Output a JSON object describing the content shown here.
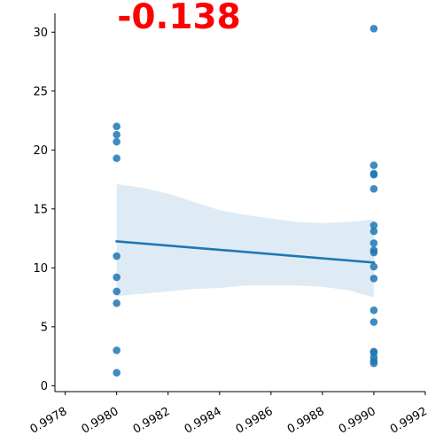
{
  "title": "-0.138",
  "colors": {
    "title": "#ff0000",
    "points": "#1f77b4",
    "line": "#1f77b4",
    "band": "#1f77b4"
  },
  "chart_data": {
    "type": "scatter",
    "title": "-0.138",
    "xlabel": "",
    "ylabel": "",
    "xlim": [
      0.99776,
      0.9992
    ],
    "ylim": [
      -0.5,
      31.6
    ],
    "xticks": [
      0.9978,
      0.998,
      0.9982,
      0.9984,
      0.9986,
      0.9988,
      0.999,
      0.9992
    ],
    "xtick_labels": [
      "0.9978",
      "0.9980",
      "0.9982",
      "0.9984",
      "0.9986",
      "0.9988",
      "0.9990",
      "0.9992"
    ],
    "yticks": [
      0,
      5,
      10,
      15,
      20,
      25,
      30
    ],
    "ytick_labels": [
      "0",
      "5",
      "10",
      "15",
      "20",
      "25",
      "30"
    ],
    "grid": false,
    "points": [
      {
        "x": 0.998,
        "y": 22.0
      },
      {
        "x": 0.998,
        "y": 21.3
      },
      {
        "x": 0.998,
        "y": 20.7
      },
      {
        "x": 0.998,
        "y": 19.3
      },
      {
        "x": 0.998,
        "y": 11.0
      },
      {
        "x": 0.998,
        "y": 9.2
      },
      {
        "x": 0.998,
        "y": 8.0
      },
      {
        "x": 0.998,
        "y": 7.0
      },
      {
        "x": 0.998,
        "y": 3.0
      },
      {
        "x": 0.998,
        "y": 1.1
      },
      {
        "x": 0.999,
        "y": 30.3
      },
      {
        "x": 0.999,
        "y": 18.7
      },
      {
        "x": 0.999,
        "y": 18.0
      },
      {
        "x": 0.999,
        "y": 17.9
      },
      {
        "x": 0.999,
        "y": 16.7
      },
      {
        "x": 0.999,
        "y": 13.6
      },
      {
        "x": 0.999,
        "y": 13.1
      },
      {
        "x": 0.999,
        "y": 12.1
      },
      {
        "x": 0.999,
        "y": 11.5
      },
      {
        "x": 0.999,
        "y": 11.3
      },
      {
        "x": 0.999,
        "y": 10.1
      },
      {
        "x": 0.999,
        "y": 9.1
      },
      {
        "x": 0.999,
        "y": 6.4
      },
      {
        "x": 0.999,
        "y": 5.4
      },
      {
        "x": 0.999,
        "y": 2.9
      },
      {
        "x": 0.999,
        "y": 2.8
      },
      {
        "x": 0.999,
        "y": 2.4
      },
      {
        "x": 0.999,
        "y": 2.1
      },
      {
        "x": 0.999,
        "y": 1.9
      }
    ],
    "regression": {
      "x": [
        0.998,
        0.999
      ],
      "y": [
        12.25,
        10.45
      ]
    },
    "confidence_band": {
      "x": [
        0.998,
        0.9981,
        0.9982,
        0.9983,
        0.9984,
        0.9985,
        0.9986,
        0.9987,
        0.9988,
        0.9989,
        0.999
      ],
      "upper": [
        17.1,
        16.8,
        16.3,
        15.6,
        14.9,
        14.5,
        14.2,
        13.9,
        13.8,
        13.9,
        14.1
      ],
      "lower": [
        7.6,
        7.8,
        8.0,
        8.2,
        8.3,
        8.5,
        8.5,
        8.5,
        8.4,
        8.1,
        7.5
      ]
    }
  }
}
